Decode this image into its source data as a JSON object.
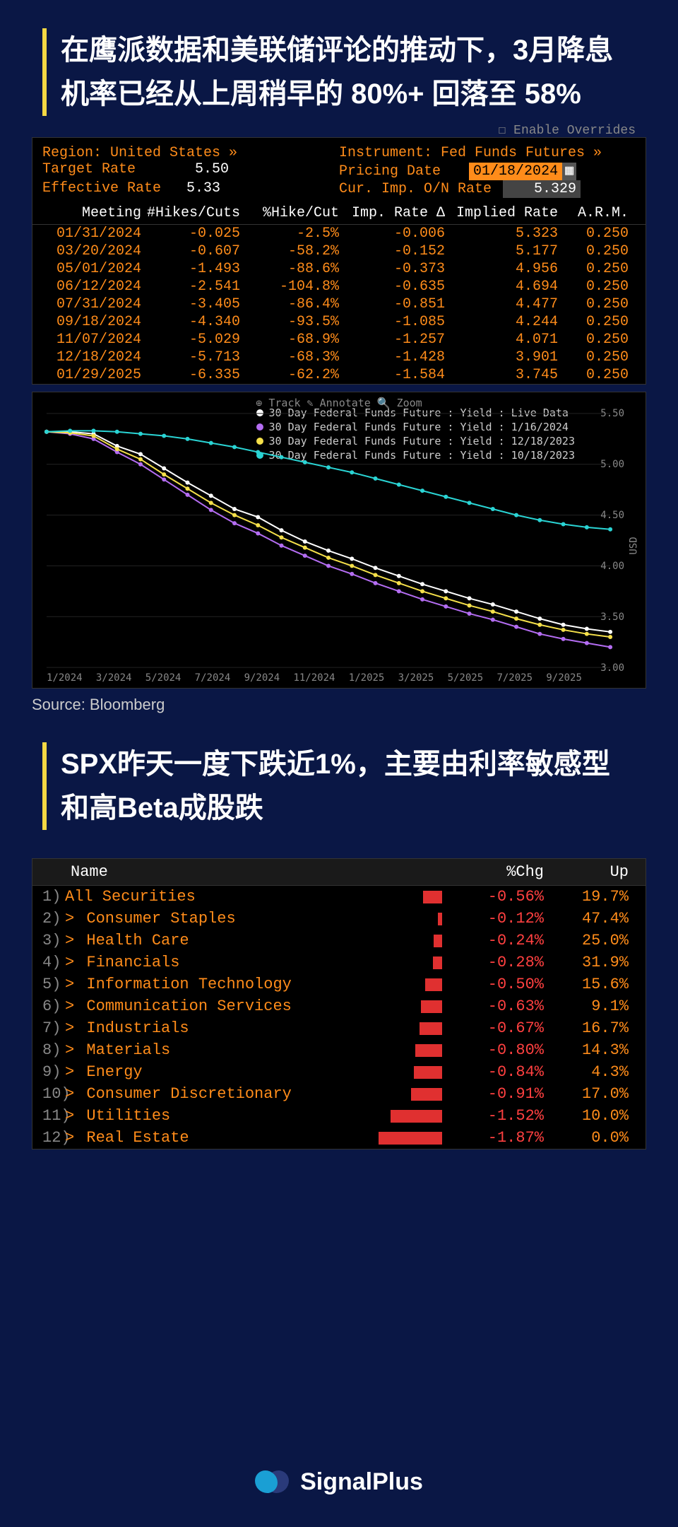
{
  "headline1": "在鹰派数据和美联储评论的推动下，3月降息机率已经从上周稍早的 80%+ 回落至 58%",
  "headline2": "SPX昨天一度下跌近1%，主要由利率敏感型和高Beta成股跌",
  "source": "Source: Bloomberg",
  "footer_brand": "SignalPlus",
  "terminal": {
    "overrides_label": "Enable Overrides",
    "region_label": "Region: United States »",
    "instrument_label": "Instrument: Fed Funds Futures »",
    "target_rate_label": "Target Rate",
    "target_rate_value": "5.50",
    "effective_rate_label": "Effective Rate",
    "effective_rate_value": "5.33",
    "pricing_date_label": "Pricing Date",
    "pricing_date_value": "01/18/2024",
    "cur_imp_label": "Cur. Imp. O/N Rate",
    "cur_imp_value": "5.329",
    "columns": [
      "Meeting",
      "#Hikes/Cuts",
      "%Hike/Cut",
      "Imp. Rate Δ",
      "Implied Rate",
      "A.R.M."
    ],
    "rows": [
      [
        "01/31/2024",
        "-0.025",
        "-2.5%",
        "-0.006",
        "5.323",
        "0.250"
      ],
      [
        "03/20/2024",
        "-0.607",
        "-58.2%",
        "-0.152",
        "5.177",
        "0.250"
      ],
      [
        "05/01/2024",
        "-1.493",
        "-88.6%",
        "-0.373",
        "4.956",
        "0.250"
      ],
      [
        "06/12/2024",
        "-2.541",
        "-104.8%",
        "-0.635",
        "4.694",
        "0.250"
      ],
      [
        "07/31/2024",
        "-3.405",
        "-86.4%",
        "-0.851",
        "4.477",
        "0.250"
      ],
      [
        "09/18/2024",
        "-4.340",
        "-93.5%",
        "-1.085",
        "4.244",
        "0.250"
      ],
      [
        "11/07/2024",
        "-5.029",
        "-68.9%",
        "-1.257",
        "4.071",
        "0.250"
      ],
      [
        "12/18/2024",
        "-5.713",
        "-68.3%",
        "-1.428",
        "3.901",
        "0.250"
      ],
      [
        "01/29/2025",
        "-6.335",
        "-62.2%",
        "-1.584",
        "3.745",
        "0.250"
      ]
    ]
  },
  "chart": {
    "toolbar": "⊕ Track   ✎ Annotate   🔍 Zoom",
    "y_axis_label": "USD",
    "ylim": [
      3.0,
      5.5
    ],
    "y_ticks": [
      "5.50",
      "5.00",
      "4.50",
      "4.00",
      "3.50",
      "3.00"
    ],
    "x_ticks": [
      "1/2024",
      "3/2024",
      "5/2024",
      "7/2024",
      "9/2024",
      "11/2024",
      "1/2025",
      "3/2025",
      "5/2025",
      "7/2025",
      "9/2025"
    ],
    "legend_prefix": "30 Day Federal Funds Future : Yield : ",
    "series": [
      {
        "label": "Live Data",
        "color": "#ffffff",
        "values": [
          5.32,
          5.32,
          5.3,
          5.18,
          5.1,
          4.96,
          4.82,
          4.69,
          4.56,
          4.48,
          4.35,
          4.24,
          4.15,
          4.07,
          3.98,
          3.9,
          3.82,
          3.75,
          3.68,
          3.62,
          3.55,
          3.48,
          3.42,
          3.38,
          3.35
        ]
      },
      {
        "label": "1/16/2024",
        "color": "#b46df2",
        "values": [
          5.32,
          5.3,
          5.25,
          5.12,
          5.0,
          4.85,
          4.7,
          4.55,
          4.42,
          4.32,
          4.2,
          4.1,
          4.0,
          3.92,
          3.83,
          3.75,
          3.67,
          3.6,
          3.53,
          3.47,
          3.4,
          3.33,
          3.28,
          3.24,
          3.2
        ]
      },
      {
        "label": "12/18/2023",
        "color": "#f5e04a",
        "values": [
          5.32,
          5.31,
          5.28,
          5.15,
          5.05,
          4.9,
          4.76,
          4.62,
          4.5,
          4.4,
          4.28,
          4.18,
          4.08,
          4.0,
          3.91,
          3.83,
          3.75,
          3.68,
          3.61,
          3.55,
          3.48,
          3.42,
          3.37,
          3.33,
          3.3
        ]
      },
      {
        "label": "10/18/2023",
        "color": "#2ad4d4",
        "values": [
          5.32,
          5.33,
          5.33,
          5.32,
          5.3,
          5.28,
          5.25,
          5.21,
          5.17,
          5.12,
          5.07,
          5.02,
          4.97,
          4.92,
          4.86,
          4.8,
          4.74,
          4.68,
          4.62,
          4.56,
          4.5,
          4.45,
          4.41,
          4.38,
          4.36
        ]
      }
    ],
    "background": "#000000",
    "grid_color": "#222222"
  },
  "sectors": {
    "columns": {
      "name": "Name",
      "chg": "%Chg",
      "up": "Up"
    },
    "rows": [
      {
        "idx": "1)",
        "name": "All Securities",
        "expand": false,
        "chg": "-0.56%",
        "chg_val": 0.56,
        "up": "19.7%"
      },
      {
        "idx": "2)",
        "name": "Consumer Staples",
        "expand": true,
        "chg": "-0.12%",
        "chg_val": 0.12,
        "up": "47.4%"
      },
      {
        "idx": "3)",
        "name": "Health Care",
        "expand": true,
        "chg": "-0.24%",
        "chg_val": 0.24,
        "up": "25.0%"
      },
      {
        "idx": "4)",
        "name": "Financials",
        "expand": true,
        "chg": "-0.28%",
        "chg_val": 0.28,
        "up": "31.9%"
      },
      {
        "idx": "5)",
        "name": "Information Technology",
        "expand": true,
        "chg": "-0.50%",
        "chg_val": 0.5,
        "up": "15.6%"
      },
      {
        "idx": "6)",
        "name": "Communication Services",
        "expand": true,
        "chg": "-0.63%",
        "chg_val": 0.63,
        "up": "9.1%"
      },
      {
        "idx": "7)",
        "name": "Industrials",
        "expand": true,
        "chg": "-0.67%",
        "chg_val": 0.67,
        "up": "16.7%"
      },
      {
        "idx": "8)",
        "name": "Materials",
        "expand": true,
        "chg": "-0.80%",
        "chg_val": 0.8,
        "up": "14.3%"
      },
      {
        "idx": "9)",
        "name": "Energy",
        "expand": true,
        "chg": "-0.84%",
        "chg_val": 0.84,
        "up": "4.3%"
      },
      {
        "idx": "10)",
        "name": "Consumer Discretionary",
        "expand": true,
        "chg": "-0.91%",
        "chg_val": 0.91,
        "up": "17.0%"
      },
      {
        "idx": "11)",
        "name": "Utilities",
        "expand": true,
        "chg": "-1.52%",
        "chg_val": 1.52,
        "up": "10.0%"
      },
      {
        "idx": "12)",
        "name": "Real Estate",
        "expand": true,
        "chg": "-1.87%",
        "chg_val": 1.87,
        "up": "0.0%"
      }
    ],
    "bar_color": "#e03030",
    "bar_max_width": 90
  }
}
